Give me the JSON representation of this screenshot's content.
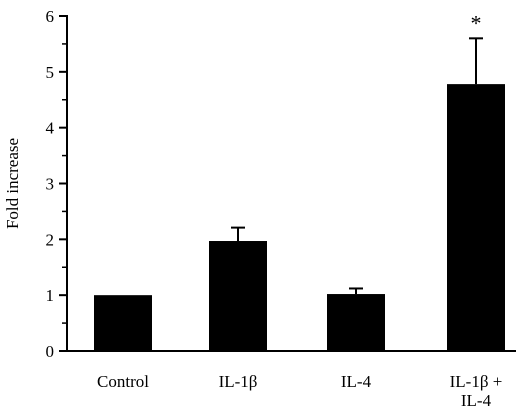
{
  "chart_data": {
    "type": "bar",
    "title": "",
    "xlabel": "",
    "ylabel": "Fold increase",
    "ylim": [
      0,
      6
    ],
    "yticks": [
      0,
      1,
      2,
      3,
      4,
      5,
      6
    ],
    "grid": false,
    "categories": [
      {
        "lines": [
          "Control"
        ]
      },
      {
        "lines": [
          "IL-1β"
        ]
      },
      {
        "lines": [
          "IL-4"
        ]
      },
      {
        "lines": [
          "IL-1β +",
          "IL-4"
        ]
      }
    ],
    "values": [
      1.0,
      1.97,
      1.02,
      4.78
    ],
    "errors": [
      0,
      0.24,
      0.1,
      0.82
    ],
    "annotations": [
      "",
      "",
      "",
      "*"
    ],
    "bar_color": "#000000"
  }
}
